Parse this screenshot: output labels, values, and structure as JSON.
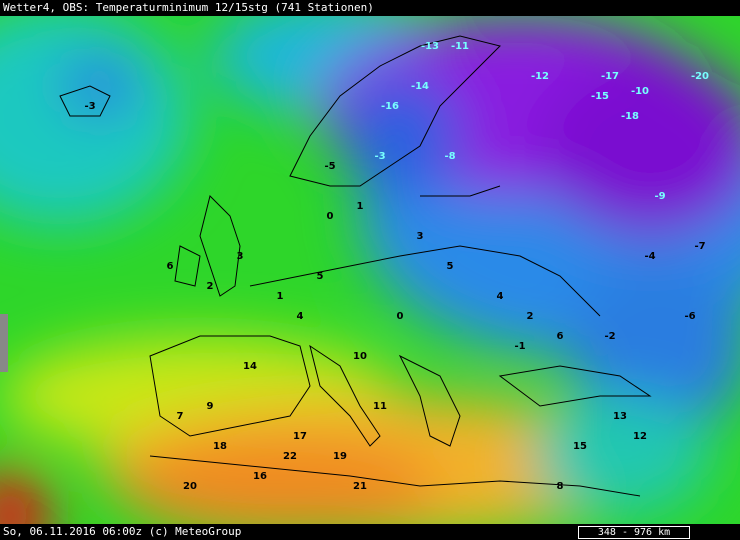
{
  "header": {
    "title": "Wetter4, OBS: Temperaturminimum 12/15stg (741 Stationen)"
  },
  "footer": {
    "timestamp": "So, 06.11.2016 06:00z (c) MeteoGroup",
    "scale": "348 - 976 km"
  },
  "stations": [
    -13,
    -11,
    -16,
    -14,
    -20,
    -12,
    -15,
    -10,
    -17,
    -18,
    -8,
    -5,
    -3,
    0,
    1,
    3,
    5,
    4,
    2,
    6,
    -4,
    -1,
    -2,
    -6,
    -9,
    -7,
    10,
    11,
    14,
    17,
    19,
    21,
    22,
    16,
    18,
    9,
    7,
    13,
    15,
    12,
    20,
    8,
    -3,
    1,
    4,
    2,
    6,
    3,
    5,
    0
  ]
}
